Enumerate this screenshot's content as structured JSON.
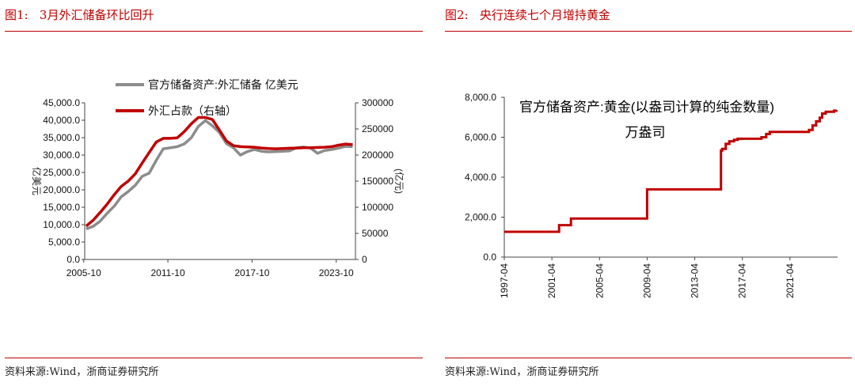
{
  "figures": [
    {
      "caption": "图1:   3月外汇储备环比回升",
      "source": "资料来源:Wind，浙商证券研究所"
    },
    {
      "caption": "图2:   央行连续七个月增持黄金",
      "source": "资料来源:Wind，浙商证券研究所"
    }
  ],
  "chart_data": [
    {
      "type": "line",
      "ylabel": "亿美元",
      "y2label": "(亿元)",
      "ylim": [
        0,
        45000
      ],
      "y2lim": [
        0,
        300000
      ],
      "y_ticks": [
        "0.0",
        "5,000.0",
        "10,000.0",
        "15,000.0",
        "20,000.0",
        "25,000.0",
        "30,000.0",
        "35,000.0",
        "40,000.0",
        "45,000.0"
      ],
      "y2_ticks": [
        "0",
        "50000",
        "100000",
        "150000",
        "200000",
        "250000",
        "300000"
      ],
      "x_tick_labels": [
        "2005-10",
        "2011-10",
        "2017-10",
        "2023-10"
      ],
      "x_range": [
        2005.9,
        2025.2
      ],
      "legend_position": "top",
      "series": [
        {
          "name": "官方储备资产:外汇储备 亿美元",
          "axis": "left",
          "color": "#8c8c8c",
          "x": [
            2006.0,
            2006.5,
            2007.0,
            2007.5,
            2008.0,
            2008.5,
            2009.0,
            2009.5,
            2010.0,
            2010.5,
            2011.0,
            2011.5,
            2012.0,
            2012.5,
            2013.0,
            2013.5,
            2014.0,
            2014.5,
            2015.0,
            2015.5,
            2016.0,
            2016.5,
            2017.0,
            2017.5,
            2018.0,
            2018.5,
            2019.0,
            2019.5,
            2020.0,
            2020.5,
            2021.0,
            2021.5,
            2022.0,
            2022.5,
            2023.0,
            2023.5,
            2024.0,
            2024.5,
            2025.0
          ],
          "y": [
            8800,
            9500,
            11000,
            13300,
            15300,
            18000,
            19500,
            21300,
            23900,
            24800,
            28500,
            31800,
            32100,
            32400,
            33200,
            35000,
            38200,
            39900,
            38400,
            36500,
            33300,
            32100,
            30000,
            31000,
            31600,
            31100,
            30900,
            31000,
            31100,
            31200,
            32100,
            32300,
            32000,
            30500,
            31300,
            31600,
            32000,
            32500,
            32400
          ]
        },
        {
          "name": "外汇占款（右轴）",
          "axis": "right",
          "color": "#c00000",
          "x": [
            2006.0,
            2006.5,
            2007.0,
            2007.5,
            2008.0,
            2008.5,
            2009.0,
            2009.5,
            2010.0,
            2010.5,
            2011.0,
            2011.5,
            2012.0,
            2012.5,
            2013.0,
            2013.5,
            2014.0,
            2014.5,
            2015.0,
            2015.5,
            2016.0,
            2016.5,
            2017.0,
            2017.5,
            2018.0,
            2018.5,
            2019.0,
            2019.5,
            2020.0,
            2020.5,
            2021.0,
            2021.5,
            2022.0,
            2022.5,
            2023.0,
            2023.5,
            2024.0,
            2024.5,
            2025.0
          ],
          "y": [
            64000,
            75000,
            90000,
            106000,
            124000,
            140000,
            150000,
            164000,
            185000,
            205000,
            225000,
            232000,
            232000,
            233000,
            245000,
            260000,
            272000,
            272000,
            268000,
            248000,
            227000,
            218000,
            216000,
            215500,
            215000,
            213500,
            212500,
            212000,
            212500,
            213000,
            213500,
            214000,
            214000,
            214500,
            215000,
            216000,
            219000,
            221000,
            220000
          ]
        }
      ]
    },
    {
      "type": "line",
      "title": "官方储备资产:黄金(以盎司计算的纯金数量)",
      "subtitle": "万盎司",
      "ylim": [
        0,
        8000
      ],
      "y_ticks": [
        "0.0",
        "2,000.0",
        "4,000.0",
        "6,000.0",
        "8,000.0"
      ],
      "x_tick_labels": [
        "1997-04",
        "2001-04",
        "2005-04",
        "2009-04",
        "2013-04",
        "2017-04",
        "2021-04"
      ],
      "x_range": [
        1997.3,
        2025.3
      ],
      "series": [
        {
          "name": "官方储备资产:黄金(以盎司计算的纯金数量)",
          "color": "#c00000",
          "step": true,
          "x": [
            1997.3,
            2001.9,
            2002.9,
            2009.3,
            2015.5,
            2015.6,
            2015.9,
            2016.2,
            2016.6,
            2016.9,
            2018.9,
            2019.3,
            2019.6,
            2019.9,
            2022.9,
            2023.2,
            2023.5,
            2023.8,
            2024.0,
            2024.3,
            2025.0,
            2025.2
          ],
          "y": [
            1267,
            1600,
            1929,
            3389,
            5331,
            5419,
            5666,
            5800,
            5870,
            5924,
            6000,
            6161,
            6264,
            6264,
            6367,
            6592,
            6795,
            6980,
            7187,
            7280,
            7329,
            7370
          ]
        }
      ]
    }
  ]
}
